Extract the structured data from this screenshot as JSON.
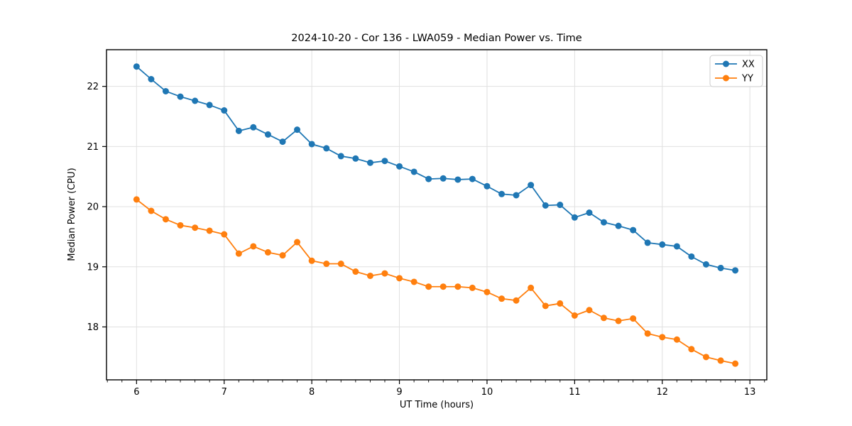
{
  "chart_data": {
    "type": "line",
    "title": "2024-10-20 - Cor 136 - LWA059 - Median Power vs. Time",
    "xlabel": "UT Time (hours)",
    "ylabel": "Median Power (CPU)",
    "xlim": [
      5.657,
      13.193
    ],
    "ylim": [
      17.12,
      22.61
    ],
    "x_ticks": [
      6,
      7,
      8,
      9,
      10,
      11,
      12,
      13
    ],
    "y_ticks": [
      18,
      19,
      20,
      21,
      22
    ],
    "x_minor_step": 0.166667,
    "grid": true,
    "legend_position": "upper right",
    "marker": "circle",
    "x": [
      6.0,
      6.167,
      6.333,
      6.5,
      6.667,
      6.833,
      7.0,
      7.167,
      7.333,
      7.5,
      7.667,
      7.833,
      8.0,
      8.167,
      8.333,
      8.5,
      8.667,
      8.833,
      9.0,
      9.167,
      9.333,
      9.5,
      9.667,
      9.833,
      10.0,
      10.167,
      10.333,
      10.5,
      10.667,
      10.833,
      11.0,
      11.167,
      11.333,
      11.5,
      11.667,
      11.833,
      12.0,
      12.167,
      12.333,
      12.5,
      12.667,
      12.833
    ],
    "series": [
      {
        "name": "XX",
        "color": "#1f77b4",
        "values": [
          22.33,
          22.12,
          21.92,
          21.83,
          21.76,
          21.69,
          21.6,
          21.26,
          21.32,
          21.2,
          21.08,
          21.28,
          21.04,
          20.97,
          20.84,
          20.8,
          20.73,
          20.76,
          20.67,
          20.58,
          20.46,
          20.47,
          20.45,
          20.46,
          20.34,
          20.21,
          20.19,
          20.36,
          20.02,
          20.03,
          19.82,
          19.9,
          19.74,
          19.68,
          19.61,
          19.4,
          19.37,
          19.34,
          19.17,
          19.04,
          18.98,
          18.94
        ]
      },
      {
        "name": "YY",
        "color": "#ff7f0e",
        "values": [
          20.12,
          19.93,
          19.79,
          19.69,
          19.65,
          19.6,
          19.54,
          19.22,
          19.34,
          19.24,
          19.19,
          19.41,
          19.1,
          19.05,
          19.05,
          18.92,
          18.85,
          18.89,
          18.81,
          18.75,
          18.67,
          18.67,
          18.67,
          18.65,
          18.58,
          18.47,
          18.44,
          18.65,
          18.35,
          18.39,
          18.19,
          18.28,
          18.15,
          18.1,
          18.14,
          17.89,
          17.83,
          17.79,
          17.63,
          17.5,
          17.44,
          17.39
        ]
      }
    ],
    "style": {
      "grid_color": "#e0e0e0",
      "spine_color": "#000000",
      "legend_border_color": "#cccccc",
      "background": "#ffffff"
    }
  }
}
